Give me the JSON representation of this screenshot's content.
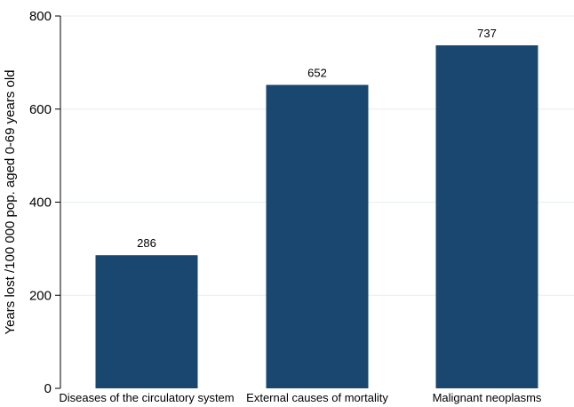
{
  "chart_data": {
    "type": "bar",
    "categories": [
      "Diseases of the circulatory system",
      "External causes of mortality",
      "Malignant neoplasms"
    ],
    "values": [
      286,
      652,
      737
    ],
    "data_labels": [
      "286",
      "652",
      "737"
    ],
    "title": "",
    "xlabel": "",
    "ylabel": "Years lost /100 000 pop. aged 0-69 years old",
    "ylim": [
      0,
      800
    ],
    "yticks": [
      0,
      200,
      400,
      600,
      800
    ],
    "ytick_labels": [
      "0",
      "200",
      "400",
      "600",
      "800"
    ],
    "grid": true,
    "legend": "none",
    "colors": {
      "bar": "#1a476f",
      "grid": "#e6edf2",
      "axis": "#000000"
    }
  }
}
